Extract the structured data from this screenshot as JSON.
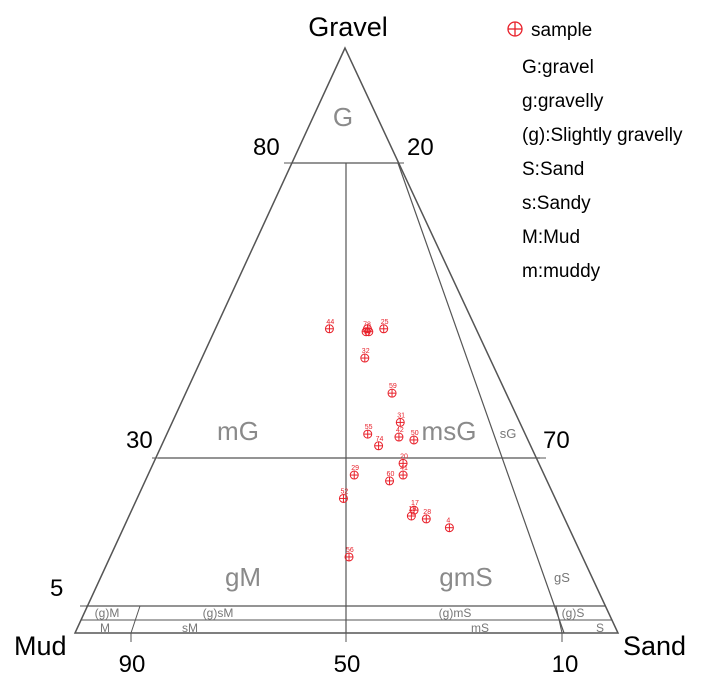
{
  "chart_data": {
    "type": "scatter",
    "subtype": "ternary",
    "vertices": {
      "top": "Gravel",
      "left": "Mud",
      "right": "Sand"
    },
    "marker_color": "#e8202a",
    "legend": {
      "placement": "top-right",
      "marker_label": "sample",
      "items": [
        "G:gravel",
        "g:gravelly",
        "(g):Slightly gravelly",
        "S:Sand",
        "s:Sandy",
        "M:Mud",
        "m:muddy"
      ]
    },
    "tick_labels": {
      "left_80": "80",
      "right_20": "20",
      "left_30": "30",
      "right_70": "70",
      "left_5": "5",
      "bottom_90": "90",
      "bottom_50": "50",
      "bottom_10": "10"
    },
    "regions": {
      "G": "G",
      "mG": "mG",
      "msG": "msG",
      "sG": "sG",
      "gM": "gM",
      "gmS": "gmS",
      "gS": "gS",
      "gM_slight": "(g)M",
      "gsM_slight": "(g)sM",
      "gmS_slight": "(g)mS",
      "gS_slight": "(g)S",
      "M": "M",
      "sM": "sM",
      "mS": "mS",
      "S": "S"
    },
    "points": [
      {
        "label": "44",
        "gravel": 52,
        "sand": 21
      },
      {
        "label": "25",
        "gravel": 52,
        "sand": 31
      },
      {
        "label": "",
        "gravel": 52,
        "sand": 28
      },
      {
        "label": "",
        "gravel": 51.5,
        "sand": 28.5
      },
      {
        "label": "78",
        "gravel": 51.5,
        "sand": 28
      },
      {
        "label": "32",
        "gravel": 47,
        "sand": 30
      },
      {
        "label": "59",
        "gravel": 41,
        "sand": 38
      },
      {
        "label": "31",
        "gravel": 36,
        "sand": 42
      },
      {
        "label": "55",
        "gravel": 34,
        "sand": 37
      },
      {
        "label": "42",
        "gravel": 33.5,
        "sand": 43
      },
      {
        "label": "50",
        "gravel": 33,
        "sand": 46
      },
      {
        "label": "74",
        "gravel": 32,
        "sand": 40
      },
      {
        "label": "20",
        "gravel": 29,
        "sand": 46
      },
      {
        "label": "29",
        "gravel": 27,
        "sand": 38
      },
      {
        "label": "41",
        "gravel": 27,
        "sand": 47
      },
      {
        "label": "60",
        "gravel": 26,
        "sand": 45
      },
      {
        "label": "52",
        "gravel": 23,
        "sand": 38
      },
      {
        "label": "17",
        "gravel": 21,
        "sand": 52
      },
      {
        "label": "19",
        "gravel": 20,
        "sand": 52
      },
      {
        "label": "28",
        "gravel": 19.5,
        "sand": 55
      },
      {
        "label": "4",
        "gravel": 18,
        "sand": 60
      },
      {
        "label": "56",
        "gravel": 13,
        "sand": 44
      }
    ]
  }
}
